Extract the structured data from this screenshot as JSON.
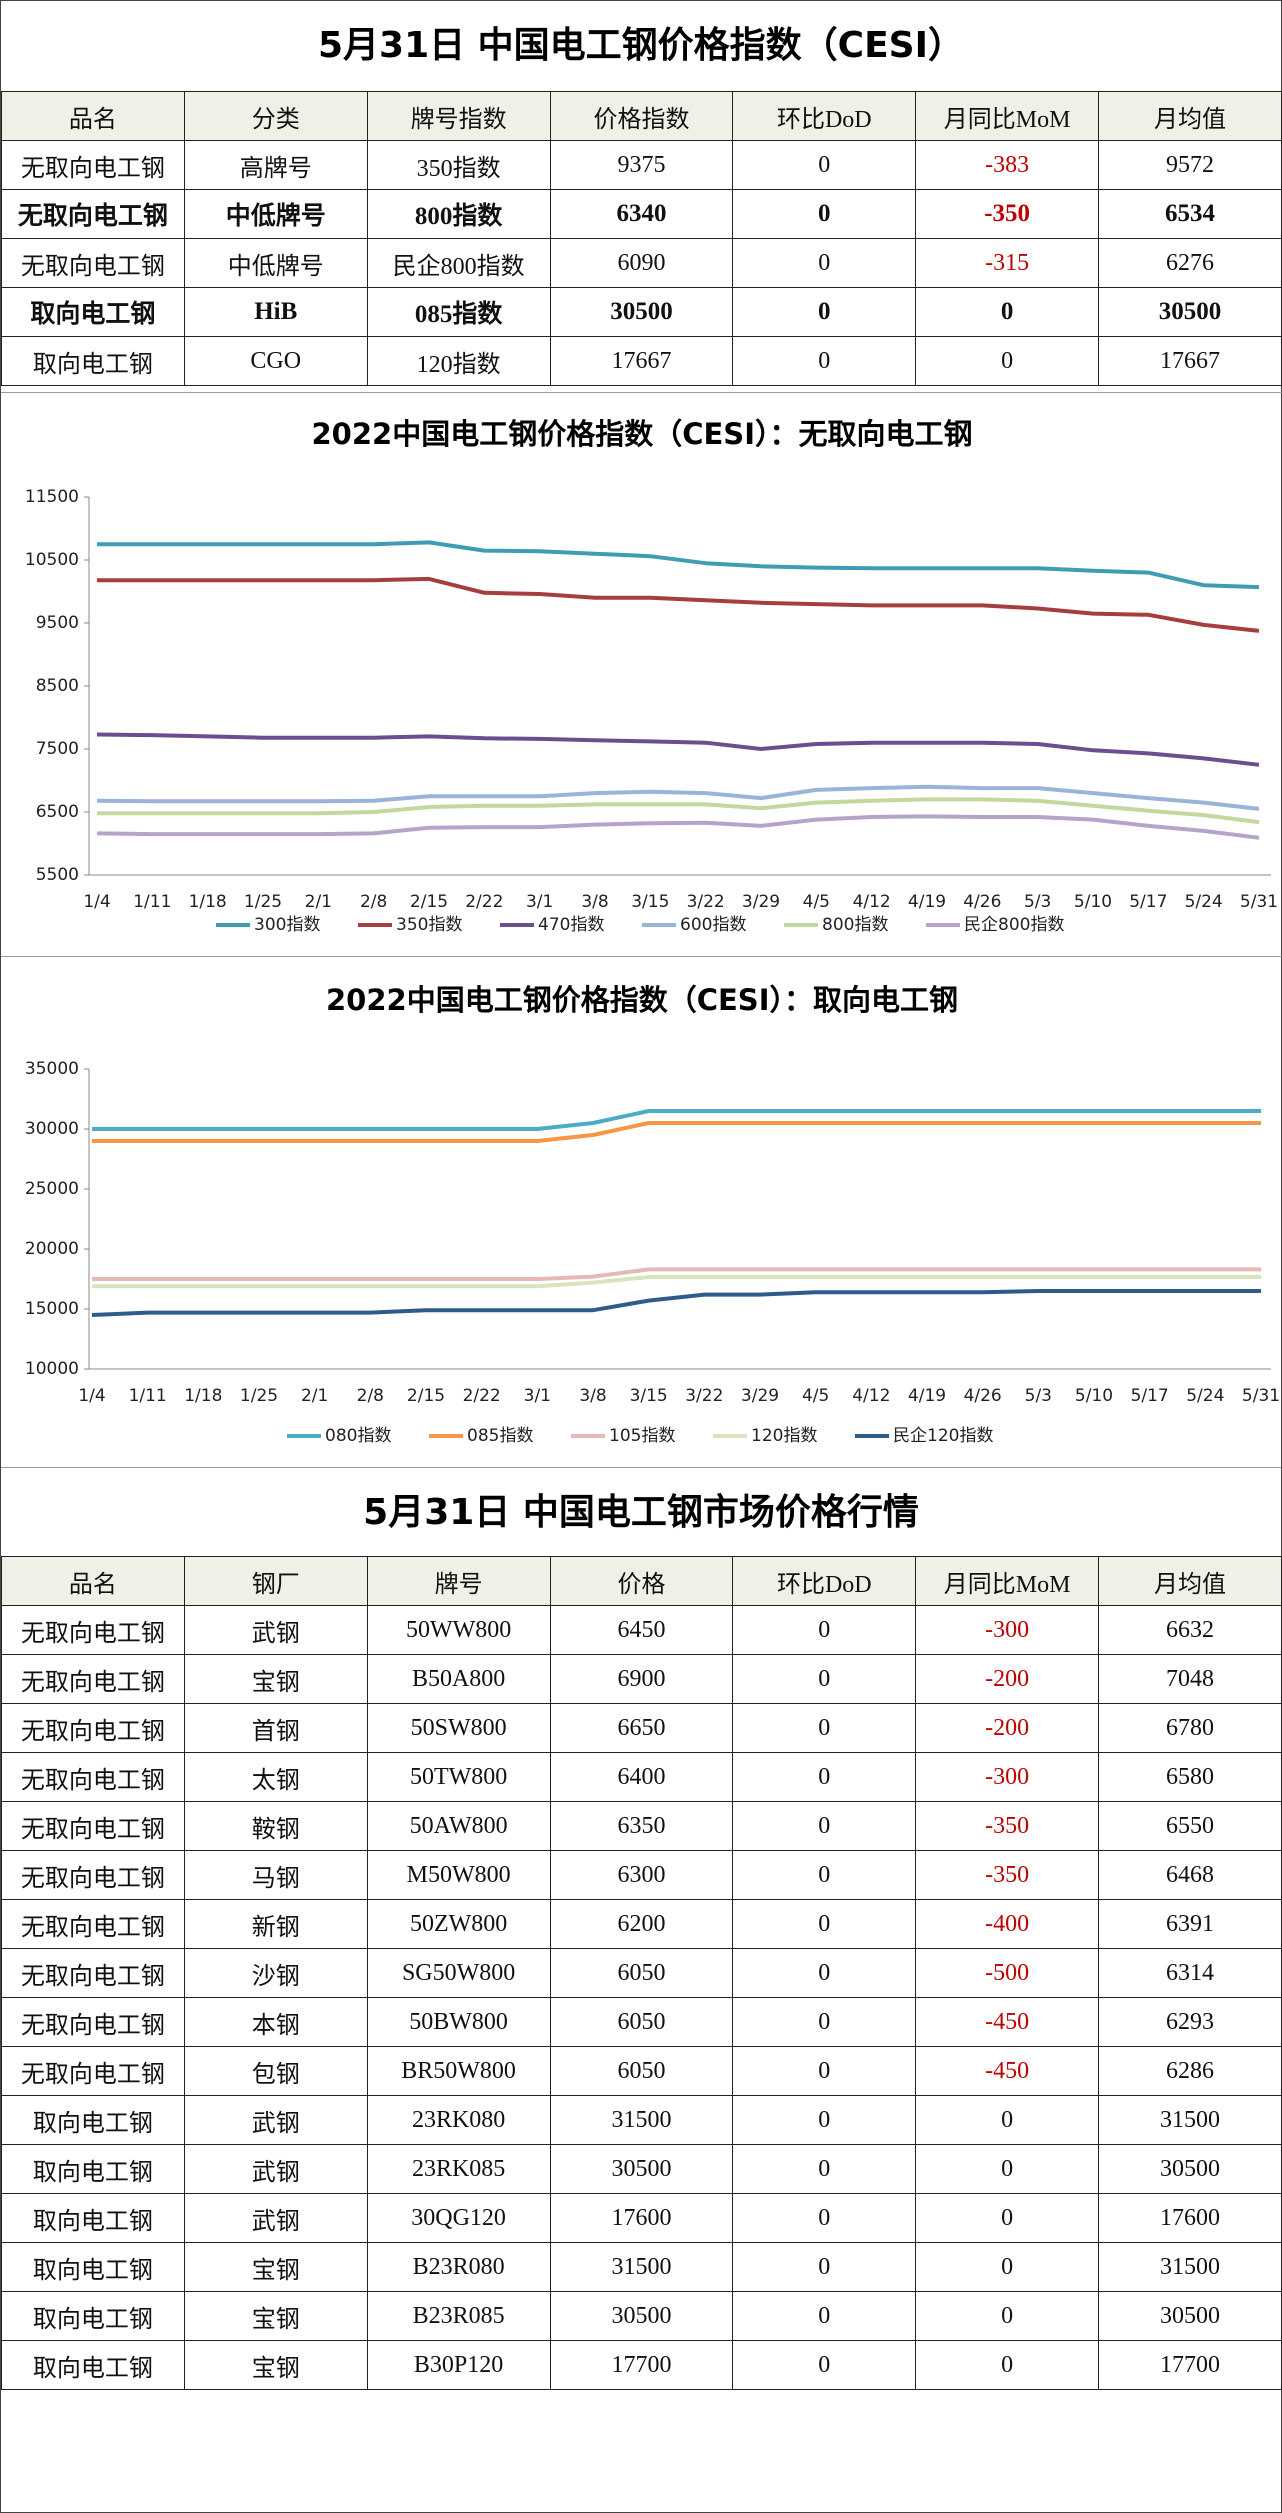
{
  "title1": "5月31日 中国电工钢价格指数（CESI）",
  "table1": {
    "header": [
      "品名",
      "分类",
      "牌号指数",
      "价格指数",
      "环比DoD",
      "月同比MoM",
      "月均值"
    ],
    "rows": [
      [
        "无取向电工钢",
        "高牌号",
        "350指数",
        9375,
        0,
        -383,
        9572
      ],
      [
        "无取向电工钢",
        "中低牌号",
        "800指数",
        6340,
        0,
        -350,
        6534
      ],
      [
        "无取向电工钢",
        "中低牌号",
        "民企800指数",
        6090,
        0,
        -315,
        6276
      ],
      [
        "取向电工钢",
        "HiB",
        "085指数",
        30500,
        0,
        0,
        30500
      ],
      [
        "取向电工钢",
        "CGO",
        "120指数",
        17667,
        0,
        0,
        17667
      ]
    ],
    "bold_rows": [
      1,
      3
    ]
  },
  "chart_data": [
    {
      "type": "line",
      "title": "2022中国电工钢价格指数（CESI）：无取向电工钢",
      "categories": [
        "1/4",
        "1/11",
        "1/18",
        "1/25",
        "2/1",
        "2/8",
        "2/15",
        "2/22",
        "3/1",
        "3/8",
        "3/15",
        "3/22",
        "3/29",
        "4/5",
        "4/12",
        "4/19",
        "4/26",
        "5/3",
        "5/10",
        "5/17",
        "5/24",
        "5/31"
      ],
      "ylim": [
        5500,
        11500
      ],
      "yticks": [
        5500,
        6500,
        7500,
        8500,
        9500,
        10500,
        11500
      ],
      "grid": false,
      "legend": "bottom",
      "series": [
        {
          "name": "300指数",
          "color": "#3f9db3",
          "values": [
            10750,
            10750,
            10750,
            10750,
            10750,
            10750,
            10780,
            10650,
            10640,
            10600,
            10560,
            10450,
            10400,
            10380,
            10370,
            10370,
            10370,
            10370,
            10330,
            10300,
            10100,
            10070
          ]
        },
        {
          "name": "350指数",
          "color": "#a63e3b",
          "values": [
            10180,
            10180,
            10180,
            10180,
            10180,
            10180,
            10200,
            9980,
            9960,
            9900,
            9900,
            9860,
            9820,
            9800,
            9780,
            9780,
            9780,
            9730,
            9650,
            9630,
            9470,
            9375
          ]
        },
        {
          "name": "470指数",
          "color": "#6a4e8e",
          "values": [
            7730,
            7720,
            7700,
            7680,
            7680,
            7680,
            7700,
            7670,
            7660,
            7640,
            7620,
            7600,
            7500,
            7580,
            7600,
            7600,
            7600,
            7580,
            7480,
            7430,
            7350,
            7250
          ]
        },
        {
          "name": "600指数",
          "color": "#98b4d8",
          "values": [
            6680,
            6670,
            6670,
            6670,
            6670,
            6680,
            6750,
            6750,
            6750,
            6800,
            6820,
            6800,
            6720,
            6850,
            6880,
            6900,
            6880,
            6880,
            6800,
            6720,
            6650,
            6550
          ]
        },
        {
          "name": "800指数",
          "color": "#c4d79d",
          "values": [
            6480,
            6480,
            6480,
            6480,
            6480,
            6500,
            6580,
            6600,
            6600,
            6620,
            6620,
            6620,
            6560,
            6650,
            6680,
            6700,
            6700,
            6680,
            6600,
            6520,
            6450,
            6340
          ]
        },
        {
          "name": "民企800指数",
          "color": "#b5a4c9",
          "values": [
            6160,
            6150,
            6150,
            6150,
            6150,
            6160,
            6250,
            6260,
            6260,
            6300,
            6320,
            6330,
            6280,
            6380,
            6420,
            6430,
            6420,
            6420,
            6380,
            6280,
            6200,
            6090
          ]
        }
      ]
    },
    {
      "type": "line",
      "title": "2022中国电工钢价格指数（CESI）：取向电工钢",
      "categories": [
        "1/4",
        "1/11",
        "1/18",
        "1/25",
        "2/1",
        "2/8",
        "2/15",
        "2/22",
        "3/1",
        "3/8",
        "3/15",
        "3/22",
        "3/29",
        "4/5",
        "4/12",
        "4/19",
        "4/26",
        "5/3",
        "5/10",
        "5/17",
        "5/24",
        "5/31"
      ],
      "ylim": [
        10000,
        35000
      ],
      "yticks": [
        10000,
        15000,
        20000,
        25000,
        30000,
        35000
      ],
      "grid": false,
      "legend": "bottom",
      "series": [
        {
          "name": "080指数",
          "color": "#4bacc6",
          "values": [
            30000,
            30000,
            30000,
            30000,
            30000,
            30000,
            30000,
            30000,
            30000,
            30500,
            31500,
            31500,
            31500,
            31500,
            31500,
            31500,
            31500,
            31500,
            31500,
            31500,
            31500,
            31500
          ]
        },
        {
          "name": "085指数",
          "color": "#f79646",
          "values": [
            29000,
            29000,
            29000,
            29000,
            29000,
            29000,
            29000,
            29000,
            29000,
            29500,
            30500,
            30500,
            30500,
            30500,
            30500,
            30500,
            30500,
            30500,
            30500,
            30500,
            30500,
            30500
          ]
        },
        {
          "name": "105指数",
          "color": "#e6b9b8",
          "values": [
            17500,
            17500,
            17500,
            17500,
            17500,
            17500,
            17500,
            17500,
            17500,
            17700,
            18300,
            18300,
            18300,
            18300,
            18300,
            18300,
            18300,
            18300,
            18300,
            18300,
            18300,
            18300
          ]
        },
        {
          "name": "120指数",
          "color": "#d7e4bc",
          "values": [
            16900,
            16900,
            16900,
            16900,
            16900,
            16900,
            16900,
            16900,
            16900,
            17200,
            17667,
            17667,
            17667,
            17667,
            17667,
            17667,
            17667,
            17667,
            17667,
            17667,
            17667,
            17667
          ]
        },
        {
          "name": "民企120指数",
          "color": "#2e5b8a",
          "values": [
            14500,
            14700,
            14700,
            14700,
            14700,
            14700,
            14900,
            14900,
            14900,
            14900,
            15700,
            16200,
            16200,
            16400,
            16400,
            16400,
            16400,
            16500,
            16500,
            16500,
            16500,
            16500
          ]
        }
      ]
    }
  ],
  "title2": "5月31日 中国电工钢市场价格行情",
  "table2": {
    "header": [
      "品名",
      "钢厂",
      "牌号",
      "价格",
      "环比DoD",
      "月同比MoM",
      "月均值"
    ],
    "rows": [
      [
        "无取向电工钢",
        "武钢",
        "50WW800",
        6450,
        0,
        -300,
        6632
      ],
      [
        "无取向电工钢",
        "宝钢",
        "B50A800",
        6900,
        0,
        -200,
        7048
      ],
      [
        "无取向电工钢",
        "首钢",
        "50SW800",
        6650,
        0,
        -200,
        6780
      ],
      [
        "无取向电工钢",
        "太钢",
        "50TW800",
        6400,
        0,
        -300,
        6580
      ],
      [
        "无取向电工钢",
        "鞍钢",
        "50AW800",
        6350,
        0,
        -350,
        6550
      ],
      [
        "无取向电工钢",
        "马钢",
        "M50W800",
        6300,
        0,
        -350,
        6468
      ],
      [
        "无取向电工钢",
        "新钢",
        "50ZW800",
        6200,
        0,
        -400,
        6391
      ],
      [
        "无取向电工钢",
        "沙钢",
        "SG50W800",
        6050,
        0,
        -500,
        6314
      ],
      [
        "无取向电工钢",
        "本钢",
        "50BW800",
        6050,
        0,
        -450,
        6293
      ],
      [
        "无取向电工钢",
        "包钢",
        "BR50W800",
        6050,
        0,
        -450,
        6286
      ],
      [
        "取向电工钢",
        "武钢",
        "23RK080",
        31500,
        0,
        0,
        31500
      ],
      [
        "取向电工钢",
        "武钢",
        "23RK085",
        30500,
        0,
        0,
        30500
      ],
      [
        "取向电工钢",
        "武钢",
        "30QG120",
        17600,
        0,
        0,
        17600
      ],
      [
        "取向电工钢",
        "宝钢",
        "B23R080",
        31500,
        0,
        0,
        31500
      ],
      [
        "取向电工钢",
        "宝钢",
        "B23R085",
        30500,
        0,
        0,
        30500
      ],
      [
        "取向电工钢",
        "宝钢",
        "B30P120",
        17700,
        0,
        0,
        17700
      ]
    ],
    "bold_rows": []
  }
}
